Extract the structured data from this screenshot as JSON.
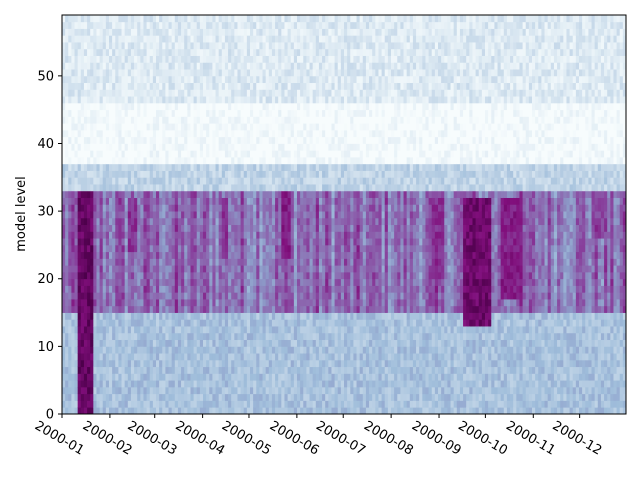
{
  "chart_data": {
    "type": "heatmap",
    "title": "",
    "xlabel": "",
    "ylabel": "model level",
    "x_range": [
      "2000-01-01",
      "2000-12-31"
    ],
    "ylim": [
      0,
      59
    ],
    "x_ticks": [
      {
        "date": "2000-01-01",
        "label": "2000-01"
      },
      {
        "date": "2000-02-01",
        "label": "2000-02"
      },
      {
        "date": "2000-03-01",
        "label": "2000-03"
      },
      {
        "date": "2000-04-01",
        "label": "2000-04"
      },
      {
        "date": "2000-05-01",
        "label": "2000-05"
      },
      {
        "date": "2000-06-01",
        "label": "2000-06"
      },
      {
        "date": "2000-07-01",
        "label": "2000-07"
      },
      {
        "date": "2000-08-01",
        "label": "2000-08"
      },
      {
        "date": "2000-09-01",
        "label": "2000-09"
      },
      {
        "date": "2000-10-01",
        "label": "2000-10"
      },
      {
        "date": "2000-11-01",
        "label": "2000-11"
      },
      {
        "date": "2000-12-01",
        "label": "2000-12"
      }
    ],
    "y_ticks": [
      0,
      10,
      20,
      30,
      40,
      50
    ],
    "colormap": [
      "#f7fcfd",
      "#e0ecf4",
      "#bfd3e6",
      "#9ebcda",
      "#8c96c6",
      "#8c6bb1",
      "#88419d",
      "#810f7c",
      "#4d004b"
    ],
    "grid": false,
    "legend": "none",
    "structure": {
      "bottom_band": {
        "levels": [
          0,
          15
        ],
        "intensity": 0.34
      },
      "convective_band": {
        "levels": [
          15,
          33
        ],
        "intensity": 0.62
      },
      "transition_band": {
        "levels": [
          33,
          37
        ],
        "intensity": 0.25
      },
      "clear_band": {
        "levels": [
          37,
          46
        ],
        "intensity": 0.01
      },
      "upper_band": {
        "levels": [
          46,
          59
        ],
        "intensity": 0.13
      },
      "intense_features": [
        {
          "start": "2000-01-11",
          "end": "2000-01-21",
          "levels": [
            0,
            33
          ],
          "intensity": 1.0
        },
        {
          "start": "2000-02-12",
          "end": "2000-02-18",
          "levels": [
            24,
            32
          ],
          "intensity": 0.85
        },
        {
          "start": "2000-04-13",
          "end": "2000-04-18",
          "levels": [
            23,
            32
          ],
          "intensity": 0.85
        },
        {
          "start": "2000-05-21",
          "end": "2000-05-29",
          "levels": [
            23,
            33
          ],
          "intensity": 0.9
        },
        {
          "start": "2000-08-28",
          "end": "2000-09-05",
          "levels": [
            20,
            32
          ],
          "intensity": 0.85
        },
        {
          "start": "2000-09-16",
          "end": "2000-10-04",
          "levels": [
            13,
            32
          ],
          "intensity": 0.98
        },
        {
          "start": "2000-10-10",
          "end": "2000-10-26",
          "levels": [
            17,
            32
          ],
          "intensity": 0.9
        },
        {
          "start": "2000-12-09",
          "end": "2000-12-16",
          "levels": [
            26,
            33
          ],
          "intensity": 0.8
        }
      ]
    }
  }
}
